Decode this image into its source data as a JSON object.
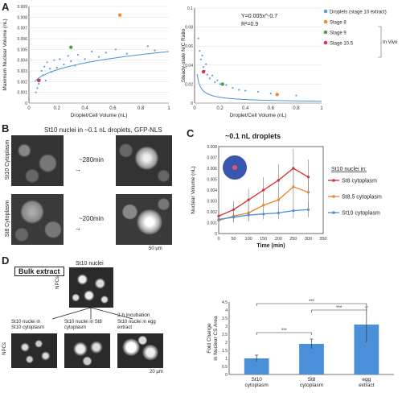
{
  "panels": {
    "A": "A",
    "B": "B",
    "C": "C",
    "D": "D"
  },
  "chart_data": [
    {
      "type": "scatter",
      "xlabel": "Droplet/Cell Volume (nL)",
      "ylabel": "Maximum Nuclear Volume (nL)",
      "xlim": [
        0,
        1
      ],
      "ylim": [
        0,
        0.009
      ],
      "xticks": [
        "0",
        "0.2",
        "0.4",
        "0.6",
        "0.8",
        "1"
      ],
      "yticks": [
        "0",
        "0.001",
        "0.002",
        "0.003",
        "0.004",
        "0.005",
        "0.006",
        "0.007",
        "0.008",
        "0.009"
      ],
      "series": [
        {
          "name": "Droplets (stage 10 extract)",
          "color": "#5aa0d8",
          "points": [
            [
              0.05,
              0.001
            ],
            [
              0.06,
              0.0014
            ],
            [
              0.07,
              0.0018
            ],
            [
              0.08,
              0.0022
            ],
            [
              0.09,
              0.003
            ],
            [
              0.1,
              0.0026
            ],
            [
              0.11,
              0.0034
            ],
            [
              0.12,
              0.0021
            ],
            [
              0.13,
              0.0038
            ],
            [
              0.15,
              0.0032
            ],
            [
              0.16,
              0.0029
            ],
            [
              0.18,
              0.004
            ],
            [
              0.2,
              0.0033
            ],
            [
              0.22,
              0.0041
            ],
            [
              0.25,
              0.0036
            ],
            [
              0.28,
              0.0044
            ],
            [
              0.3,
              0.0039
            ],
            [
              0.33,
              0.0035
            ],
            [
              0.35,
              0.0045
            ],
            [
              0.4,
              0.0041
            ],
            [
              0.45,
              0.0048
            ],
            [
              0.5,
              0.0043
            ],
            [
              0.55,
              0.0047
            ],
            [
              0.62,
              0.005
            ],
            [
              0.7,
              0.0046
            ],
            [
              0.85,
              0.0053
            ],
            [
              0.9,
              0.0049
            ]
          ]
        },
        {
          "name": "Stage 8",
          "color": "#f08a30",
          "points": [
            [
              0.65,
              0.0082
            ]
          ]
        },
        {
          "name": "Stage 9",
          "color": "#4aa04a",
          "points": [
            [
              0.3,
              0.0052
            ]
          ]
        },
        {
          "name": "Stage 10.5",
          "color": "#e0304a",
          "points": [
            [
              0.07,
              0.0021
            ]
          ]
        }
      ],
      "fit": "power"
    },
    {
      "type": "scatter",
      "xlabel": "Droplet/Cell Volume (nL)",
      "ylabel": "Steady-state N/C Ratio",
      "xlim": [
        0,
        1
      ],
      "ylim": [
        0,
        0.1
      ],
      "xticks": [
        "0",
        "0.2",
        "0.4",
        "0.6",
        "0.8",
        "1"
      ],
      "yticks": [
        "0",
        "0.02",
        "0.04",
        "0.06",
        "0.08",
        "0.1"
      ],
      "annotations": [
        "Y=0.005x^-0.7",
        "R²=0.9"
      ],
      "legend": [
        "Droplets (stage 10 extract)",
        "Stage 8",
        "Stage 9",
        "Stage 10.5"
      ],
      "legend_group": "In Vivo",
      "series": [
        {
          "name": "Droplets (stage 10 extract)",
          "color": "#5aa0d8",
          "points": [
            [
              0.03,
              0.068
            ],
            [
              0.04,
              0.055
            ],
            [
              0.05,
              0.046
            ],
            [
              0.06,
              0.05
            ],
            [
              0.07,
              0.038
            ],
            [
              0.08,
              0.034
            ],
            [
              0.09,
              0.041
            ],
            [
              0.1,
              0.03
            ],
            [
              0.12,
              0.026
            ],
            [
              0.14,
              0.029
            ],
            [
              0.16,
              0.022
            ],
            [
              0.18,
              0.024
            ],
            [
              0.2,
              0.02
            ],
            [
              0.25,
              0.019
            ],
            [
              0.3,
              0.016
            ],
            [
              0.35,
              0.014
            ],
            [
              0.4,
              0.013
            ],
            [
              0.5,
              0.012
            ],
            [
              0.6,
              0.01
            ],
            [
              0.8,
              0.008
            ]
          ]
        },
        {
          "name": "Stage 8",
          "color": "#f08a30",
          "points": [
            [
              0.65,
              0.009
            ]
          ]
        },
        {
          "name": "Stage 9",
          "color": "#4aa04a",
          "points": [
            [
              0.22,
              0.02
            ]
          ]
        },
        {
          "name": "Stage 10.5",
          "color": "#e0304a",
          "points": [
            [
              0.07,
              0.033
            ]
          ]
        }
      ],
      "fit": "Y=0.005x^-0.7"
    },
    {
      "type": "line",
      "title": "~0.1 nL droplets",
      "xlabel": "Time (min)",
      "ylabel": "Nuclear Volume (nL)",
      "xlim": [
        0,
        350
      ],
      "ylim": [
        0,
        0.008
      ],
      "xticks": [
        "0",
        "50",
        "100",
        "150",
        "200",
        "250",
        "300",
        "350"
      ],
      "yticks": [
        "0",
        "0.001",
        "0.002",
        "0.003",
        "0.004",
        "0.005",
        "0.006",
        "0.007",
        "0.008"
      ],
      "legend_title": "St10 nuclei in:",
      "x": [
        0,
        50,
        100,
        150,
        200,
        250,
        300
      ],
      "series": [
        {
          "name": "St8 cytoplasm",
          "color": "#d8282a",
          "values": [
            0.0016,
            0.0022,
            0.0031,
            0.004,
            0.0049,
            0.006,
            0.0052
          ],
          "err": [
            0.0004,
            0.0008,
            0.001,
            0.0012,
            0.0015,
            0.0018,
            0.0016
          ]
        },
        {
          "name": "St8.5 cytoplasm",
          "color": "#e8832a",
          "values": [
            0.0012,
            0.0016,
            0.0019,
            0.0026,
            0.0031,
            0.0043,
            0.0038
          ],
          "err": [
            0.0004,
            0.0006,
            0.0008,
            0.001,
            0.0012,
            0.0015,
            0.0014
          ]
        },
        {
          "name": "St10 cytoplasm",
          "color": "#4a90d9",
          "values": [
            0.0013,
            0.0015,
            0.0017,
            0.0018,
            0.0019,
            0.0021,
            0.0022
          ],
          "err": [
            0.0003,
            0.0004,
            0.0005,
            0.0005,
            0.0006,
            0.0007,
            0.0007
          ]
        }
      ]
    },
    {
      "type": "bar",
      "ylabel": "Fold Change in Nuclear CS Area",
      "ylim": [
        0,
        4.5
      ],
      "yticks": [
        "0",
        "0.5",
        "1",
        "1.5",
        "2",
        "2.5",
        "3",
        "3.5",
        "4",
        "4.5"
      ],
      "categories": [
        "St10 cytoplasm",
        "St8 cytoplasm",
        "egg extract"
      ],
      "values": [
        1.0,
        1.9,
        3.1
      ],
      "err": [
        0.2,
        0.3,
        1.1
      ],
      "color": "#4a90d9",
      "significance": [
        "***",
        "***",
        "***"
      ]
    }
  ],
  "panelB": {
    "title": "St10 nuclei in ~0.1 nL droplets, GFP-NLS",
    "row1_label": "St10 Cytoplasm",
    "row2_label": "St8 Cytoplasm",
    "row1_time": "~280min",
    "row2_time": "~200min",
    "scale": "50 μm"
  },
  "panelD": {
    "box": "Bulk extract",
    "top_title": "St10 nuclei",
    "top_side": "NPCs",
    "bottom_side": "NPCs",
    "incubation": "2 h incubation",
    "c1": "St10 nuclei in St10 cytoplasm",
    "c2": "St10 nuclei in St8 cytoplasm",
    "c3": "St10 nuclei in egg extract",
    "scale": "20 μm"
  }
}
